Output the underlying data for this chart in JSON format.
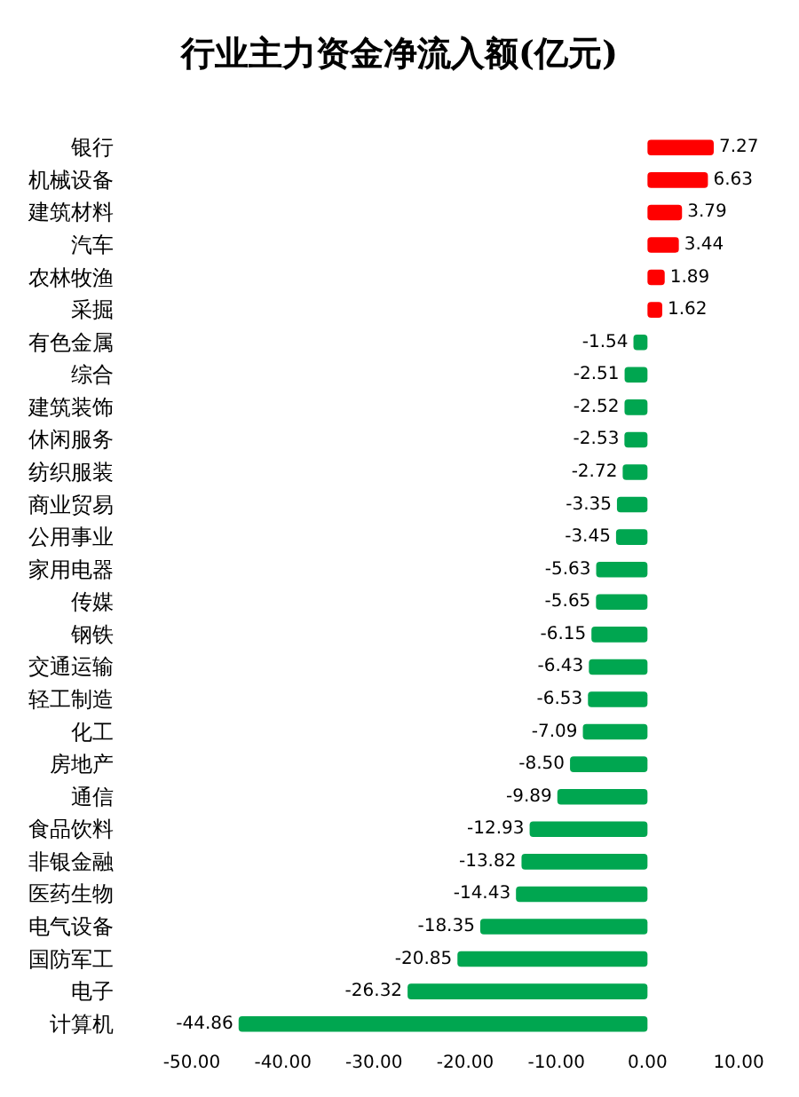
{
  "chart_data": {
    "type": "bar",
    "orientation": "horizontal",
    "title": "行业主力资金净流入额(亿元)",
    "categories": [
      "银行",
      "机械设备",
      "建筑材料",
      "汽车",
      "农林牧渔",
      "采掘",
      "有色金属",
      "综合",
      "建筑装饰",
      "休闲服务",
      "纺织服装",
      "商业贸易",
      "公用事业",
      "家用电器",
      "传媒",
      "钢铁",
      "交通运输",
      "轻工制造",
      "化工",
      "房地产",
      "通信",
      "食品饮料",
      "非银金融",
      "医药生物",
      "电气设备",
      "国防军工",
      "电子",
      "计算机"
    ],
    "values": [
      7.27,
      6.63,
      3.79,
      3.44,
      1.89,
      1.62,
      -1.54,
      -2.51,
      -2.52,
      -2.53,
      -2.72,
      -3.35,
      -3.45,
      -5.63,
      -5.65,
      -6.15,
      -6.43,
      -6.53,
      -7.09,
      -8.5,
      -9.89,
      -12.93,
      -13.82,
      -14.43,
      -18.35,
      -20.85,
      -26.32,
      -44.86
    ],
    "value_labels": [
      "7.27",
      "6.63",
      "3.79",
      "3.44",
      "1.89",
      "1.62",
      "-1.54",
      "-2.51",
      "-2.52",
      "-2.53",
      "-2.72",
      "-3.35",
      "-3.45",
      "-5.63",
      "-5.65",
      "-6.15",
      "-6.43",
      "-6.53",
      "-7.09",
      "-8.50",
      "-9.89",
      "-12.93",
      "-13.82",
      "-14.43",
      "-18.35",
      "-20.85",
      "-26.32",
      "-44.86"
    ],
    "colors": [
      "#ff0000",
      "#ff0000",
      "#ff0000",
      "#ff0000",
      "#ff0000",
      "#ff0000",
      "#00a650",
      "#00a650",
      "#00a650",
      "#00a650",
      "#00a650",
      "#00a650",
      "#00a650",
      "#00a650",
      "#00a650",
      "#00a650",
      "#00a650",
      "#00a650",
      "#00a650",
      "#00a650",
      "#00a650",
      "#00a650",
      "#00a650",
      "#00a650",
      "#00a650",
      "#00a650",
      "#00a650",
      "#00a650"
    ],
    "xlim": [
      -50,
      10
    ],
    "xticks": [
      {
        "value": -50,
        "label": "-50.00"
      },
      {
        "value": -40,
        "label": "-40.00"
      },
      {
        "value": -30,
        "label": "-30.00"
      },
      {
        "value": -20,
        "label": "-20.00"
      },
      {
        "value": -10,
        "label": "-10.00"
      },
      {
        "value": 0,
        "label": "0.00"
      },
      {
        "value": 10,
        "label": "10.00"
      }
    ],
    "grid": false
  }
}
